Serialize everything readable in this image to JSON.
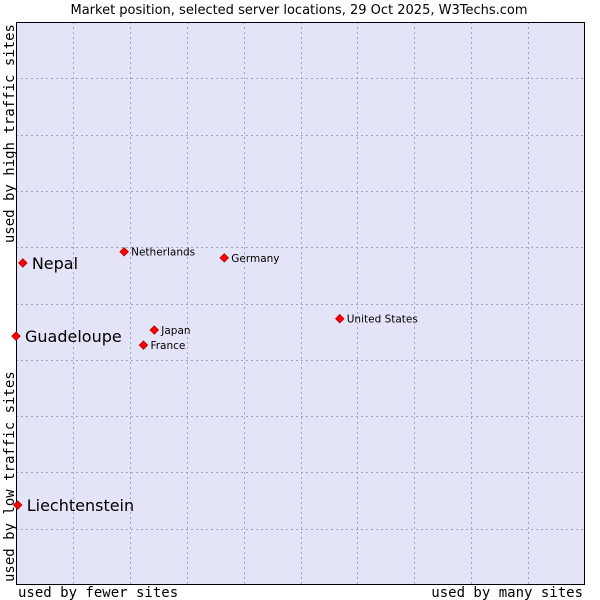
{
  "chart_data": {
    "type": "scatter",
    "title": "Market position, selected server locations, 29 Oct 2025, W3Techs.com",
    "xlabel_left": "used by fewer sites",
    "xlabel_right": "used by many sites",
    "ylabel_bottom": "used by low traffic sites",
    "ylabel_top": "used by high traffic sites",
    "xlim": [
      0,
      100
    ],
    "ylim": [
      0,
      100
    ],
    "grid": true,
    "colors": {
      "background": "#e4e4f8",
      "grid": "#a0a0c0",
      "marker": "#ff0000",
      "marker_edge": "#b00000",
      "frame": "#000000"
    },
    "points": [
      {
        "label": "Nepal",
        "x": 1.2,
        "y": 57.2,
        "emphasis": true
      },
      {
        "label": "Guadeloupe",
        "x": 0.0,
        "y": 44.2,
        "emphasis": true
      },
      {
        "label": "Liechtenstein",
        "x": 0.3,
        "y": 14.2,
        "emphasis": true
      },
      {
        "label": "Netherlands",
        "x": 19.0,
        "y": 59.2,
        "emphasis": false
      },
      {
        "label": "Germany",
        "x": 36.6,
        "y": 58.1,
        "emphasis": false
      },
      {
        "label": "United States",
        "x": 56.9,
        "y": 47.3,
        "emphasis": false
      },
      {
        "label": "Japan",
        "x": 24.3,
        "y": 45.3,
        "emphasis": false
      },
      {
        "label": "France",
        "x": 22.4,
        "y": 42.6,
        "emphasis": false
      }
    ]
  }
}
